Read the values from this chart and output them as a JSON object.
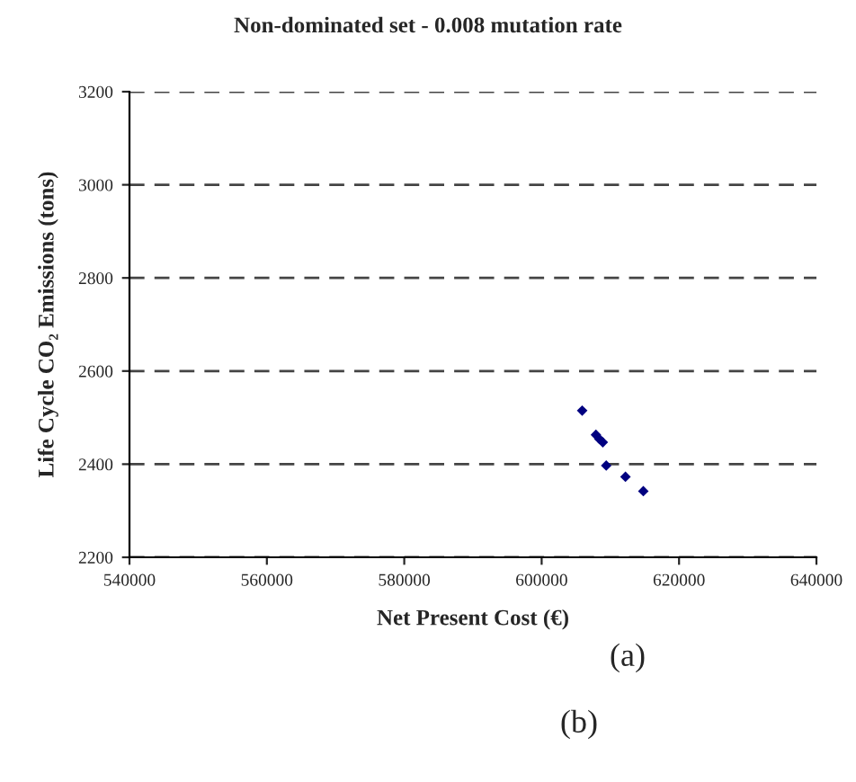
{
  "chart_data": {
    "type": "scatter",
    "title": "Non-dominated set - 0.008 mutation rate",
    "xlabel": "Net Present Cost (€)",
    "ylabel": "Life Cycle CO₂ Emissions (tons)",
    "series": [
      {
        "color": "#000080",
        "x": [
          605900,
          607900,
          608400,
          608900,
          609400,
          612200,
          614800
        ],
        "values": [
          2515,
          2463,
          2454,
          2447,
          2397,
          2373,
          2342
        ]
      }
    ],
    "xlim": [
      540000,
      640000
    ],
    "xticks": [
      540000,
      560000,
      580000,
      600000,
      620000,
      640000
    ],
    "ylim": [
      2200,
      3200
    ],
    "yticks": [
      2200,
      2400,
      2600,
      2800,
      3000,
      3200
    ],
    "grid": "y",
    "marker": "diamond",
    "legend": false,
    "annotations": [
      "(a)",
      "(b)"
    ]
  }
}
